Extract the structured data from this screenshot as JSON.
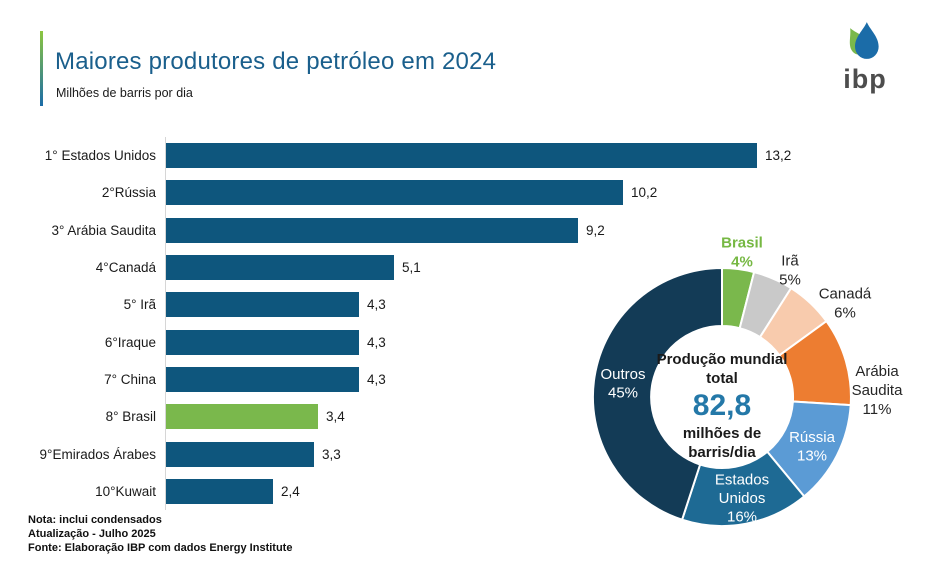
{
  "header": {
    "title": "Maiores produtores de petróleo em 2024",
    "subtitle": "Milhões de barris por dia",
    "logo_text": "ibp"
  },
  "notes": {
    "line1": "Nota: inclui condensados",
    "line2": "Atualização - Julho 2025",
    "line3": "Fonte: Elaboração IBP com dados Energy Institute"
  },
  "colors": {
    "title_blue": "#1A5F8C",
    "bar_blue": "#0E567D",
    "highlight_green": "#7AB84C",
    "axis_gray": "#D6D6D6",
    "center_value_blue": "#2478A8"
  },
  "chart_data": [
    {
      "type": "bar",
      "orientation": "horizontal",
      "title": "Maiores produtores de petróleo em 2024",
      "unit": "Milhões de barris por dia",
      "categories": [
        "1° Estados Unidos",
        "2°Rússia",
        "3° Arábia Saudita",
        "4°Canadá",
        "5° Irã",
        "6°Iraque",
        "7° China",
        "8° Brasil",
        "9°Emirados Árabes",
        "10°Kuwait"
      ],
      "values": [
        13.2,
        10.2,
        9.2,
        5.1,
        4.3,
        4.3,
        4.3,
        3.4,
        3.3,
        2.4
      ],
      "value_labels": [
        "13,2",
        "10,2",
        "9,2",
        "5,1",
        "4,3",
        "4,3",
        "4,3",
        "3,4",
        "3,3",
        "2,4"
      ],
      "highlight_index": 7,
      "bar_color": "#0E567D",
      "highlight_color": "#7AB84C",
      "xlim": [
        0,
        13.2
      ],
      "grid": false
    },
    {
      "type": "pie",
      "subtype": "donut",
      "start_angle_deg": 0,
      "slices": [
        {
          "label": "Brasil",
          "pct": 4,
          "pct_label": "4%",
          "color": "#7AB84C",
          "label_position": "outside",
          "label_color": "#76B843",
          "label_bold": true
        },
        {
          "label": "Irã",
          "pct": 5,
          "pct_label": "5%",
          "color": "#C9C9C9",
          "label_position": "outside",
          "label_color": "#262626",
          "label_bold": false
        },
        {
          "label": "Canadá",
          "pct": 6,
          "pct_label": "6%",
          "color": "#F8CBAD",
          "label_position": "outside",
          "label_color": "#262626",
          "label_bold": false
        },
        {
          "label": "Arábia Saudita",
          "pct": 11,
          "pct_label": "11%",
          "color": "#ED7D31",
          "label_position": "outside",
          "label_color": "#262626",
          "label_bold": false
        },
        {
          "label": "Rússia",
          "pct": 13,
          "pct_label": "13%",
          "color": "#5B9BD5",
          "label_position": "inside",
          "label_color": "#FFFFFF",
          "label_bold": false
        },
        {
          "label": "Estados Unidos",
          "pct": 16,
          "pct_label": "16%",
          "color": "#1E6A94",
          "label_position": "inside",
          "label_color": "#FFFFFF",
          "label_bold": false
        },
        {
          "label": "Outros",
          "pct": 45,
          "pct_label": "45%",
          "color": "#133B56",
          "label_position": "inside",
          "label_color": "#FFFFFF",
          "label_bold": false
        }
      ],
      "center": {
        "title": "Produção mundial total",
        "value": "82,8",
        "unit": "milhões de barris/dia"
      }
    }
  ]
}
